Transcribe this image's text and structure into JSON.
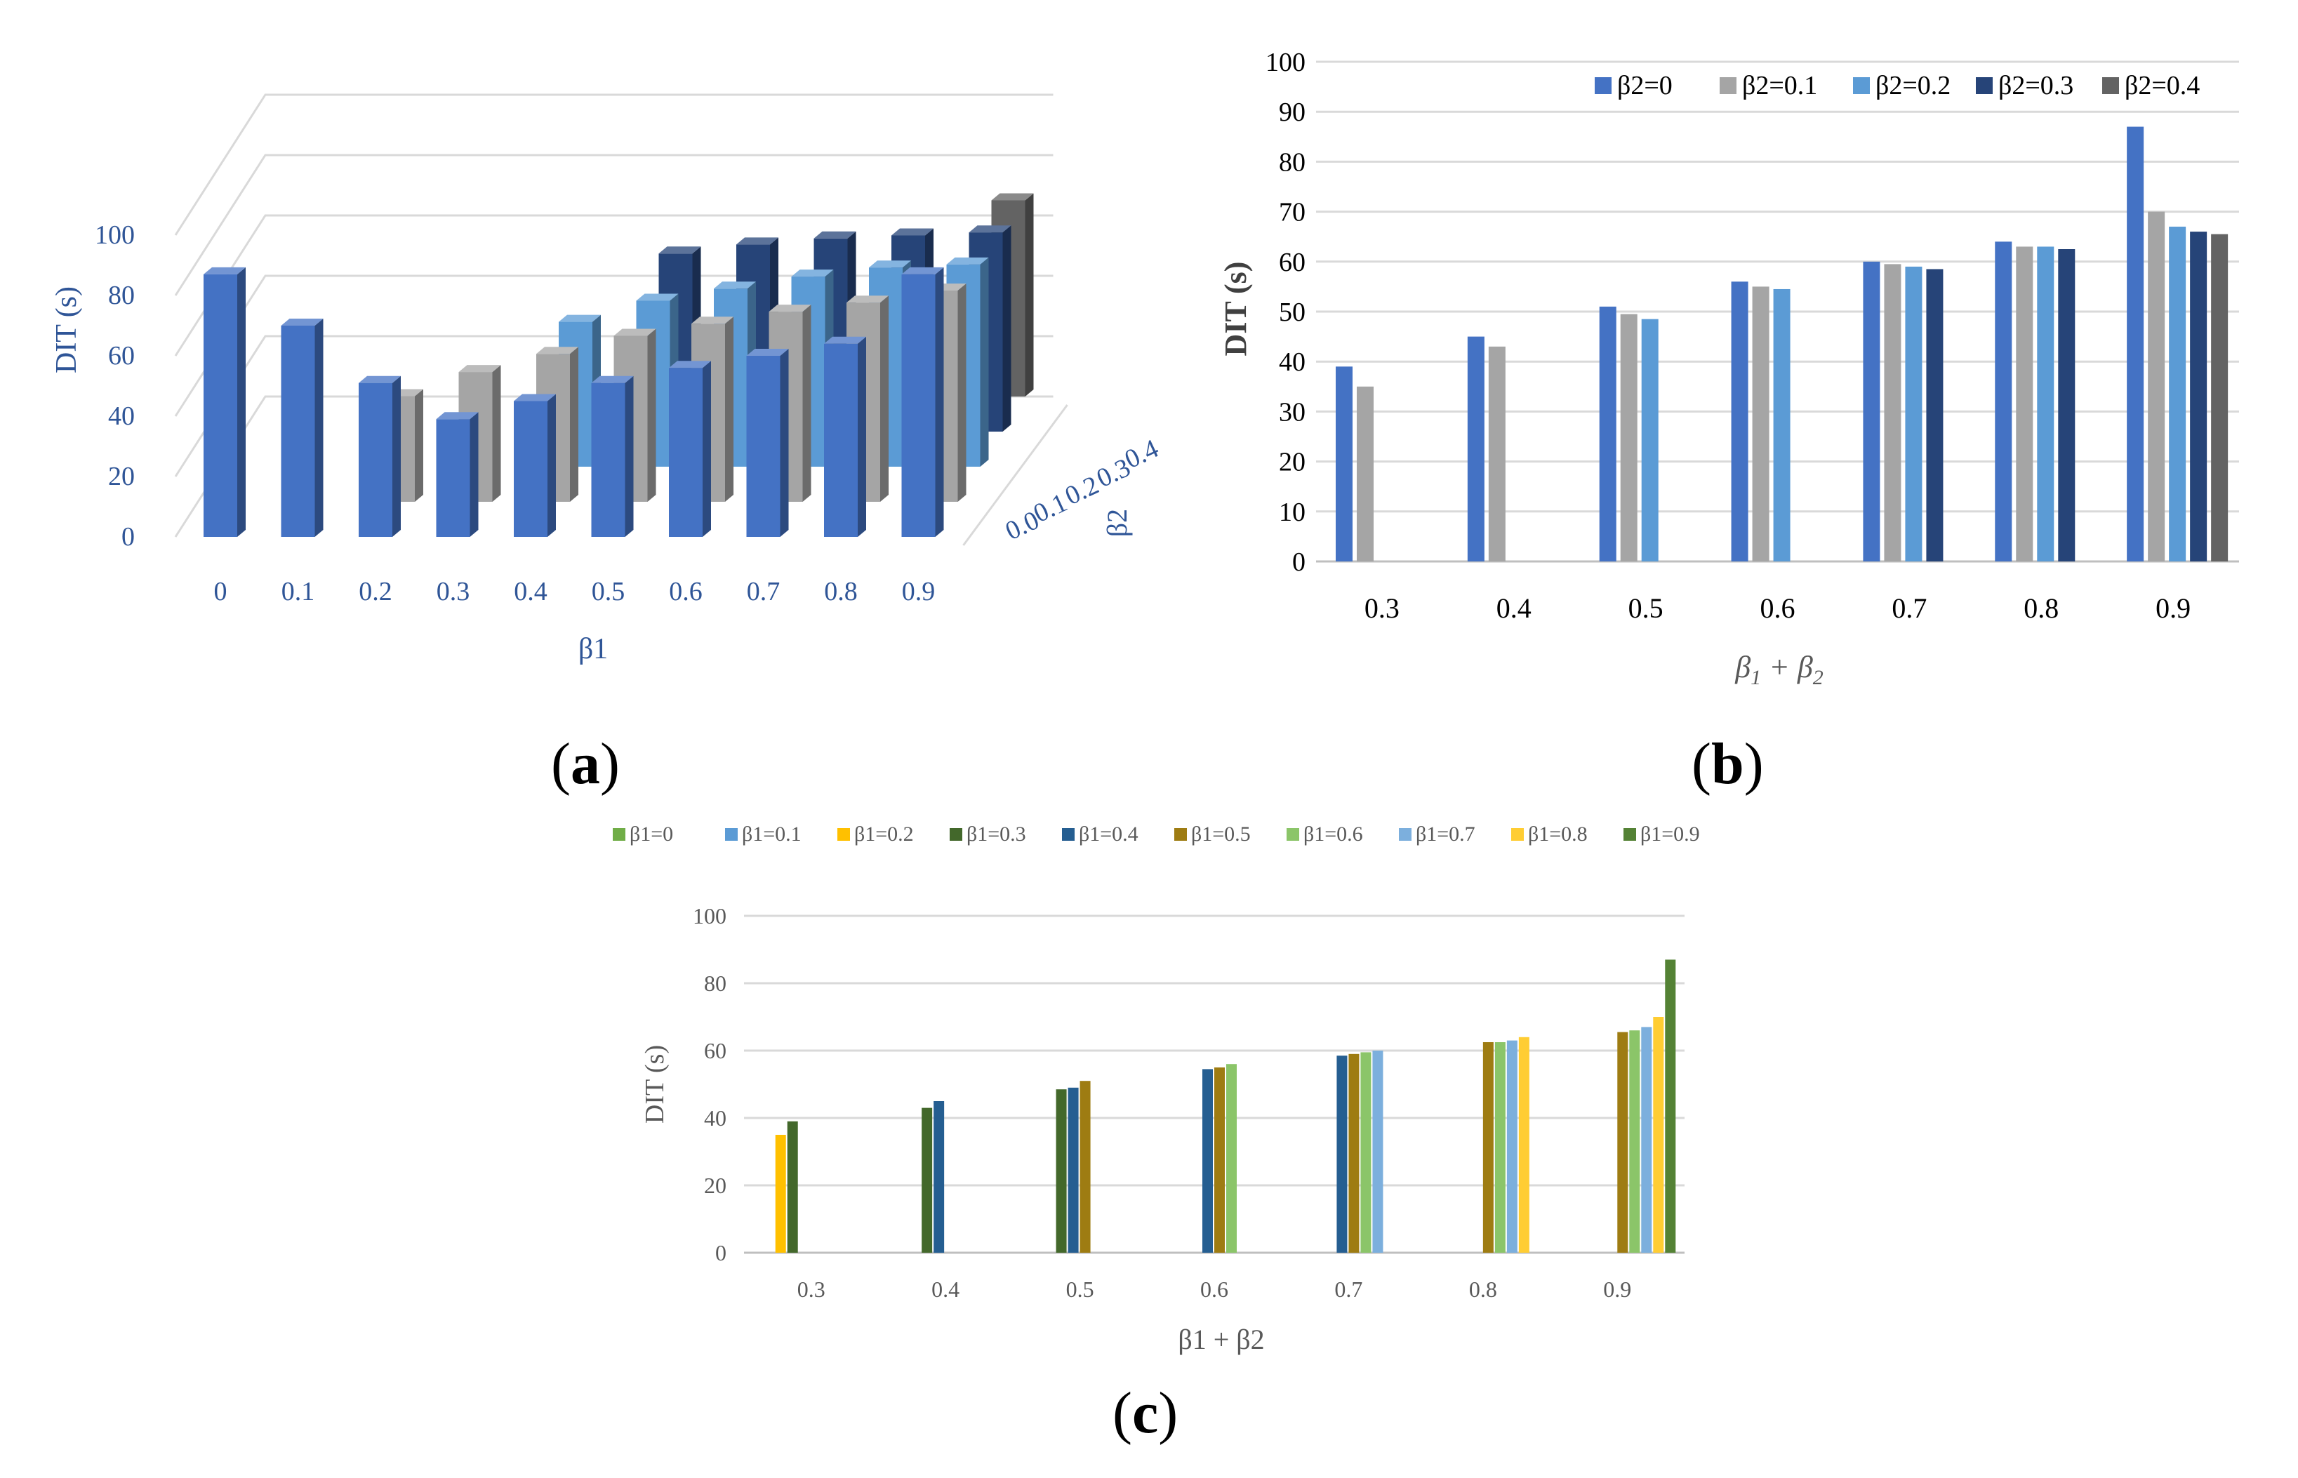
{
  "colors": {
    "axis_text": "#2f5597",
    "grid": "#d9d9d9",
    "b_series": [
      "#4472c4",
      "#a5a5a5",
      "#5b9bd5",
      "#264478",
      "#636363"
    ],
    "c_series": [
      "#70ad47",
      "#5b9bd5",
      "#ffc000",
      "#43682b",
      "#255e91",
      "#9e7c12",
      "#8bc569",
      "#7cafdd",
      "#ffcd33",
      "#548235"
    ]
  },
  "panel_labels": [
    {
      "open": "(",
      "letter": "a",
      "close": ")"
    },
    {
      "open": "(",
      "letter": "b",
      "close": ")"
    },
    {
      "open": "(",
      "letter": "c",
      "close": ")"
    }
  ],
  "chart_data": [
    {
      "id": "a",
      "type": "bar",
      "variant": "3d-grouped",
      "title": "",
      "xlabel": "β1",
      "ylabel": "DIT (s)",
      "zlabel": "β2",
      "ylim": [
        0,
        100
      ],
      "yticks": [
        0,
        20,
        40,
        60,
        80,
        100
      ],
      "categories": [
        "0",
        "0.1",
        "0.2",
        "0.3",
        "0.4",
        "0.5",
        "0.6",
        "0.7",
        "0.8",
        "0.9"
      ],
      "depth_categories": [
        "0.0",
        "0.1",
        "0.2",
        "0.3",
        "0.4"
      ],
      "series": [
        {
          "name": "β2=0",
          "values": [
            87,
            70,
            51,
            39,
            45,
            51,
            56,
            60,
            64,
            87
          ]
        },
        {
          "name": "β2=0.1",
          "values": [
            null,
            null,
            35,
            43,
            49,
            55,
            59,
            63,
            66,
            70
          ]
        },
        {
          "name": "β2=0.2",
          "values": [
            null,
            null,
            null,
            null,
            48,
            55,
            59,
            63,
            66,
            67
          ]
        },
        {
          "name": "β2=0.3",
          "values": [
            null,
            null,
            null,
            null,
            null,
            59,
            62,
            64,
            65,
            66
          ]
        },
        {
          "name": "β2=0.4",
          "values": [
            null,
            null,
            null,
            null,
            null,
            null,
            null,
            null,
            null,
            65
          ]
        }
      ]
    },
    {
      "id": "b",
      "type": "bar",
      "title": "",
      "xlabel_main": "β",
      "xlabel_sub1": "1",
      "xlabel_plus": " + β",
      "xlabel_sub2": "2",
      "ylabel": "DIT (s)",
      "ylim": [
        0,
        100
      ],
      "yticks": [
        0,
        10,
        20,
        30,
        40,
        50,
        60,
        70,
        80,
        90,
        100
      ],
      "legend": "top-right",
      "categories": [
        "0.3",
        "0.4",
        "0.5",
        "0.6",
        "0.7",
        "0.8",
        "0.9"
      ],
      "series": [
        {
          "name": "β2=0",
          "values": [
            39,
            45,
            51,
            56,
            60,
            64,
            87
          ]
        },
        {
          "name": "β2=0.1",
          "values": [
            35,
            43,
            49.5,
            55,
            59.5,
            63,
            70
          ]
        },
        {
          "name": "β2=0.2",
          "values": [
            null,
            null,
            48.5,
            54.5,
            59,
            63,
            67
          ]
        },
        {
          "name": "β2=0.3",
          "values": [
            null,
            null,
            null,
            null,
            58.5,
            62.5,
            66
          ]
        },
        {
          "name": "β2=0.4",
          "values": [
            null,
            null,
            null,
            null,
            null,
            null,
            65.5
          ]
        }
      ]
    },
    {
      "id": "c",
      "type": "bar",
      "title": "",
      "xlabel": "β1 + β2",
      "ylabel": "DIT (s)",
      "ylim": [
        0,
        100
      ],
      "yticks": [
        0,
        20,
        40,
        60,
        80,
        100
      ],
      "legend": "top",
      "categories": [
        "0.3",
        "0.4",
        "0.5",
        "0.6",
        "0.7",
        "0.8",
        "0.9"
      ],
      "series": [
        {
          "name": "β1=0",
          "values": [
            null,
            null,
            null,
            null,
            null,
            null,
            null
          ]
        },
        {
          "name": "β1=0.1",
          "values": [
            null,
            null,
            null,
            null,
            null,
            null,
            null
          ]
        },
        {
          "name": "β1=0.2",
          "values": [
            35,
            null,
            null,
            null,
            null,
            null,
            null
          ]
        },
        {
          "name": "β1=0.3",
          "values": [
            39,
            43,
            48.5,
            null,
            null,
            null,
            null
          ]
        },
        {
          "name": "β1=0.4",
          "values": [
            null,
            45,
            49,
            54.5,
            58.5,
            null,
            null
          ]
        },
        {
          "name": "β1=0.5",
          "values": [
            null,
            null,
            51,
            55,
            59,
            62.5,
            65.5
          ]
        },
        {
          "name": "β1=0.6",
          "values": [
            null,
            null,
            null,
            56,
            59.5,
            62.5,
            66
          ]
        },
        {
          "name": "β1=0.7",
          "values": [
            null,
            null,
            null,
            null,
            60,
            63,
            67
          ]
        },
        {
          "name": "β1=0.8",
          "values": [
            null,
            null,
            null,
            null,
            null,
            64,
            70
          ]
        },
        {
          "name": "β1=0.9",
          "values": [
            null,
            null,
            null,
            null,
            null,
            null,
            87
          ]
        }
      ]
    }
  ]
}
